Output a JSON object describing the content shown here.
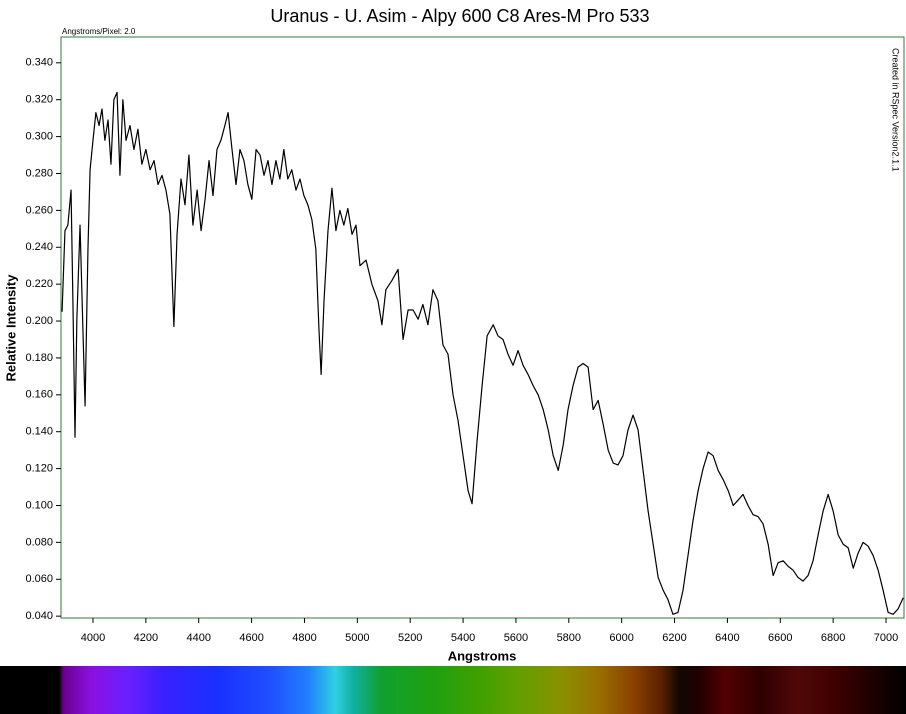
{
  "chart_data": {
    "type": "line",
    "title": "Uranus - U. Asim - Alpy 600 C8 Ares-M Pro 533",
    "x_label": "Angstroms",
    "y_label": "Relative Intensity",
    "annotations": [
      "Angstroms/Pixel: 2.0",
      "Created in RSpec Version2.1.1"
    ],
    "color": "#000000",
    "frame_color": "#2e7d32",
    "xlim": [
      3879,
      7068
    ],
    "ylim": [
      0.039,
      0.354
    ],
    "xticks": [
      4000,
      4200,
      4400,
      4600,
      4800,
      5000,
      5200,
      5400,
      5600,
      5800,
      6000,
      6200,
      6400,
      6600,
      6800,
      7000
    ],
    "yticks": [
      {
        "value": 0.04,
        "label": "0.040"
      },
      {
        "value": 0.06,
        "label": "0.060"
      },
      {
        "value": 0.08,
        "label": "0.080"
      },
      {
        "value": 0.1,
        "label": "0.100"
      },
      {
        "value": 0.12,
        "label": "0.120"
      },
      {
        "value": 0.14,
        "label": "0.140"
      },
      {
        "value": 0.16,
        "label": "0.160"
      },
      {
        "value": 0.18,
        "label": "0.180"
      },
      {
        "value": 0.2,
        "label": "0.200"
      },
      {
        "value": 0.22,
        "label": "0.220"
      },
      {
        "value": 0.24,
        "label": "0.240"
      },
      {
        "value": 0.26,
        "label": "0.260"
      },
      {
        "value": 0.28,
        "label": "0.280"
      },
      {
        "value": 0.3,
        "label": "0.300"
      },
      {
        "value": 0.32,
        "label": "0.320"
      },
      {
        "value": 0.34,
        "label": "0.340"
      }
    ],
    "x": [
      3883,
      3894,
      3905,
      3917,
      3924,
      3932,
      3939,
      3951,
      3962,
      3970,
      3981,
      3989,
      4000,
      4011,
      4023,
      4034,
      4045,
      4057,
      4068,
      4079,
      4091,
      4102,
      4113,
      4125,
      4140,
      4155,
      4170,
      4185,
      4200,
      4216,
      4231,
      4246,
      4261,
      4276,
      4291,
      4306,
      4318,
      4333,
      4348,
      4363,
      4378,
      4394,
      4409,
      4424,
      4439,
      4454,
      4469,
      4484,
      4499,
      4511,
      4526,
      4541,
      4556,
      4571,
      4586,
      4601,
      4617,
      4632,
      4647,
      4662,
      4677,
      4692,
      4707,
      4722,
      4737,
      4752,
      4768,
      4783,
      4798,
      4813,
      4828,
      4843,
      4855,
      4863,
      4874,
      4889,
      4904,
      4919,
      4934,
      4949,
      4964,
      4980,
      4995,
      5010,
      5033,
      5055,
      5078,
      5093,
      5108,
      5131,
      5154,
      5173,
      5192,
      5211,
      5230,
      5248,
      5267,
      5286,
      5305,
      5324,
      5343,
      5362,
      5381,
      5400,
      5419,
      5434,
      5453,
      5472,
      5491,
      5514,
      5532,
      5551,
      5570,
      5589,
      5608,
      5627,
      5646,
      5665,
      5684,
      5703,
      5722,
      5741,
      5760,
      5779,
      5797,
      5816,
      5835,
      5854,
      5873,
      5892,
      5911,
      5930,
      5949,
      5968,
      5986,
      6005,
      6024,
      6043,
      6062,
      6081,
      6100,
      6119,
      6138,
      6157,
      6175,
      6194,
      6213,
      6232,
      6251,
      6270,
      6289,
      6308,
      6327,
      6346,
      6365,
      6384,
      6403,
      6422,
      6441,
      6459,
      6478,
      6497,
      6516,
      6535,
      6554,
      6573,
      6592,
      6611,
      6630,
      6648,
      6667,
      6686,
      6705,
      6724,
      6743,
      6762,
      6781,
      6800,
      6819,
      6838,
      6857,
      6876,
      6894,
      6913,
      6932,
      6951,
      6970,
      6989,
      7008,
      7027,
      7046,
      7065
    ],
    "values": [
      0.205,
      0.249,
      0.252,
      0.271,
      0.211,
      0.137,
      0.201,
      0.252,
      0.195,
      0.154,
      0.239,
      0.282,
      0.298,
      0.313,
      0.306,
      0.315,
      0.298,
      0.309,
      0.285,
      0.32,
      0.324,
      0.279,
      0.32,
      0.298,
      0.306,
      0.293,
      0.304,
      0.285,
      0.293,
      0.282,
      0.287,
      0.274,
      0.279,
      0.271,
      0.258,
      0.197,
      0.247,
      0.277,
      0.263,
      0.29,
      0.252,
      0.271,
      0.249,
      0.266,
      0.287,
      0.268,
      0.293,
      0.298,
      0.306,
      0.313,
      0.293,
      0.274,
      0.293,
      0.287,
      0.274,
      0.266,
      0.293,
      0.29,
      0.279,
      0.287,
      0.274,
      0.287,
      0.277,
      0.293,
      0.277,
      0.282,
      0.271,
      0.277,
      0.268,
      0.263,
      0.255,
      0.239,
      0.195,
      0.171,
      0.211,
      0.249,
      0.272,
      0.249,
      0.26,
      0.252,
      0.261,
      0.247,
      0.252,
      0.23,
      0.233,
      0.22,
      0.211,
      0.198,
      0.217,
      0.222,
      0.228,
      0.19,
      0.206,
      0.206,
      0.201,
      0.209,
      0.198,
      0.217,
      0.211,
      0.187,
      0.182,
      0.16,
      0.146,
      0.127,
      0.108,
      0.101,
      0.135,
      0.165,
      0.192,
      0.198,
      0.192,
      0.19,
      0.182,
      0.176,
      0.184,
      0.176,
      0.171,
      0.165,
      0.16,
      0.152,
      0.141,
      0.127,
      0.119,
      0.133,
      0.152,
      0.165,
      0.175,
      0.177,
      0.175,
      0.152,
      0.157,
      0.144,
      0.13,
      0.123,
      0.122,
      0.127,
      0.141,
      0.149,
      0.141,
      0.119,
      0.097,
      0.079,
      0.061,
      0.054,
      0.049,
      0.041,
      0.042,
      0.054,
      0.073,
      0.092,
      0.108,
      0.12,
      0.129,
      0.127,
      0.119,
      0.114,
      0.108,
      0.1,
      0.103,
      0.106,
      0.1,
      0.095,
      0.094,
      0.09,
      0.079,
      0.062,
      0.069,
      0.07,
      0.067,
      0.065,
      0.061,
      0.059,
      0.062,
      0.07,
      0.084,
      0.097,
      0.106,
      0.097,
      0.084,
      0.079,
      0.077,
      0.066,
      0.074,
      0.08,
      0.078,
      0.073,
      0.065,
      0.054,
      0.042,
      0.041,
      0.044,
      0.05
    ]
  }
}
